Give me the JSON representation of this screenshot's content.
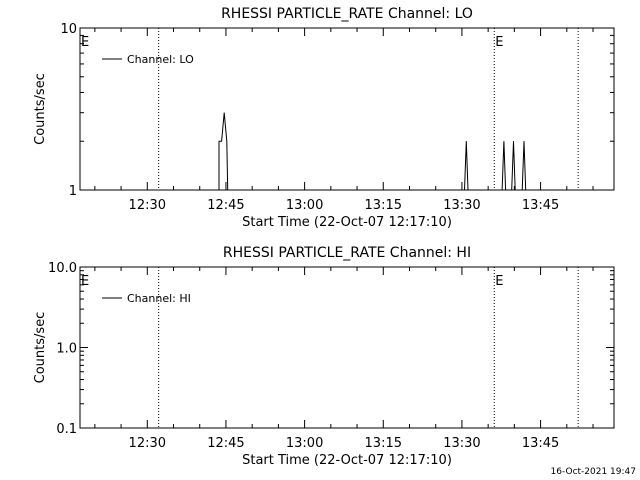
{
  "chart_data": [
    {
      "type": "line",
      "title": "RHESSI PARTICLE_RATE Channel: LO",
      "xlabel": "Start Time (22-Oct-07 12:17:10)",
      "ylabel": "Counts/sec",
      "y_scale": "log",
      "ylim": [
        1,
        10
      ],
      "xlim": [
        "12:17:10",
        "13:59:00"
      ],
      "x_ticks": [
        "12:30",
        "12:45",
        "13:00",
        "13:15",
        "13:30",
        "13:45"
      ],
      "y_ticks": [
        "1",
        "10"
      ],
      "legend": {
        "position": "top-left",
        "entries": [
          "Channel: LO"
        ]
      },
      "series": [
        {
          "name": "Channel: LO",
          "points": [
            [
              "12:43:40",
              1
            ],
            [
              "12:43:40",
              2
            ],
            [
              "12:44:10",
              2
            ],
            [
              "12:44:40",
              3
            ],
            [
              "12:45:10",
              2
            ],
            [
              "12:45:20",
              1
            ],
            [
              "13:30:30",
              1
            ],
            [
              "13:30:50",
              2
            ],
            [
              "13:31:10",
              1
            ],
            [
              "13:37:40",
              1
            ],
            [
              "13:38:00",
              2
            ],
            [
              "13:38:20",
              1
            ],
            [
              "13:39:30",
              1
            ],
            [
              "13:39:50",
              2
            ],
            [
              "13:40:10",
              1
            ],
            [
              "13:41:30",
              1
            ],
            [
              "13:41:50",
              2
            ],
            [
              "13:42:10",
              1
            ]
          ]
        }
      ],
      "vertical_markers": [
        {
          "time": "12:32:10",
          "label": ""
        },
        {
          "time": "13:36:10",
          "label": "E"
        },
        {
          "time": "13:52:10",
          "label": ""
        }
      ],
      "corner_label": "E"
    },
    {
      "type": "line",
      "title": "RHESSI PARTICLE_RATE Channel: HI",
      "xlabel": "Start Time (22-Oct-07 12:17:10)",
      "ylabel": "Counts/sec",
      "y_scale": "log",
      "ylim": [
        0.1,
        10
      ],
      "xlim": [
        "12:17:10",
        "13:59:00"
      ],
      "x_ticks": [
        "12:30",
        "12:45",
        "13:00",
        "13:15",
        "13:30",
        "13:45"
      ],
      "y_ticks": [
        "0.1",
        "1.0",
        "10.0"
      ],
      "legend": {
        "position": "top-left",
        "entries": [
          "Channel: HI"
        ]
      },
      "series": [
        {
          "name": "Channel: HI",
          "points": []
        }
      ],
      "vertical_markers": [
        {
          "time": "12:32:10",
          "label": ""
        },
        {
          "time": "13:36:10",
          "label": "E"
        },
        {
          "time": "13:52:10",
          "label": ""
        }
      ],
      "corner_label": "E"
    }
  ],
  "footer": {
    "timestamp": "16-Oct-2021 19:47"
  }
}
